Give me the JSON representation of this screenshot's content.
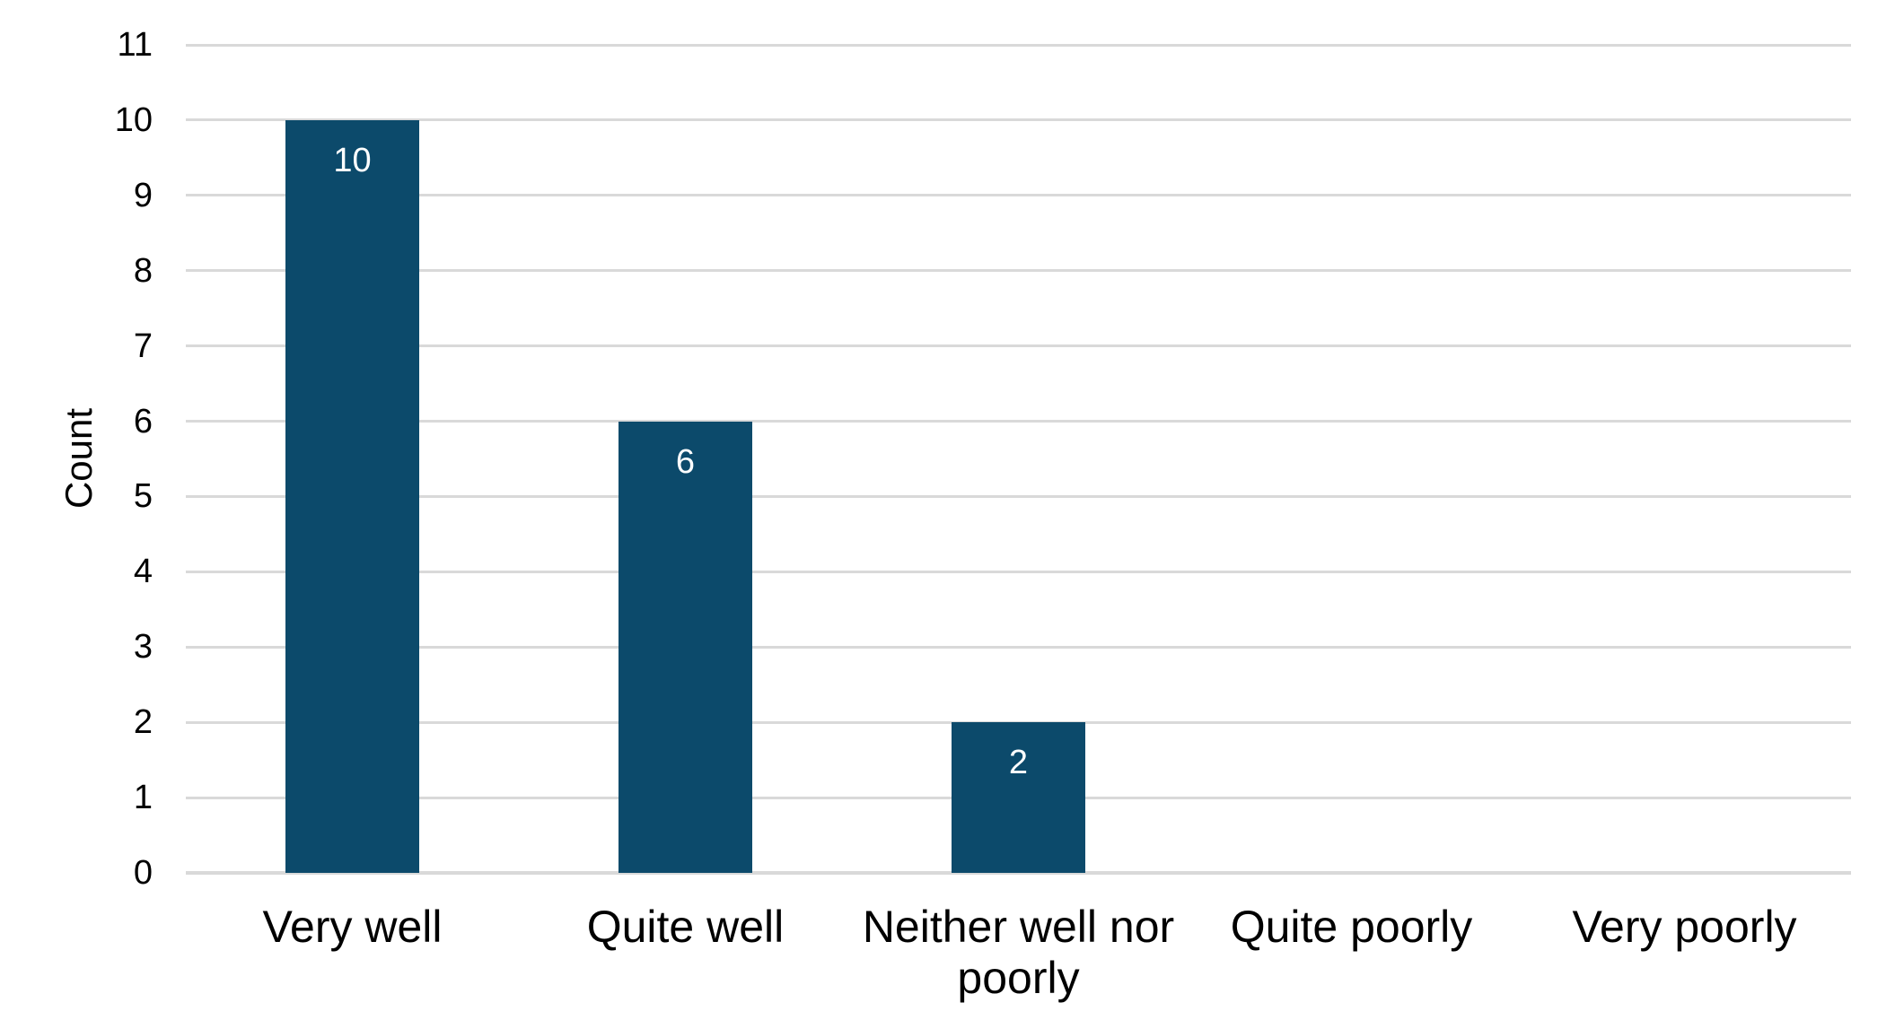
{
  "chart_data": {
    "type": "bar",
    "title": "",
    "xlabel": "",
    "ylabel": "Count",
    "categories": [
      "Very well",
      "Quite well",
      "Neither well nor poorly",
      "Quite poorly",
      "Very poorly"
    ],
    "values": [
      10,
      6,
      2,
      0,
      0
    ],
    "data_labels": [
      "10",
      "6",
      "2",
      "",
      ""
    ],
    "yticks": [
      0,
      1,
      2,
      3,
      4,
      5,
      6,
      7,
      8,
      9,
      10,
      11
    ],
    "ylim": [
      0,
      11
    ],
    "grid": true,
    "legend": false,
    "colors": {
      "bar": "#0C4A6B",
      "data_label": "#FFFFFF",
      "gridline": "#D9D9D9",
      "baseline": "#D9D9D9",
      "axis_text": "#000000",
      "background": "#FFFFFF"
    }
  }
}
